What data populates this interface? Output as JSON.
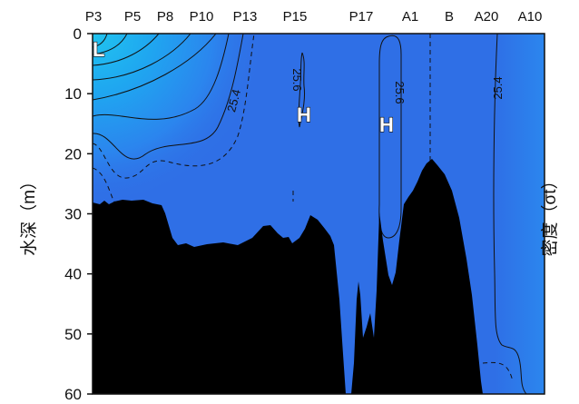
{
  "chart_data": {
    "type": "contour",
    "stations": [
      "P3",
      "P5",
      "P8",
      "P10",
      "P13",
      "P15",
      "P17",
      "A1",
      "B",
      "A20",
      "A10"
    ],
    "ylabel": "水深（m）",
    "right_label": "密度（σt）",
    "ylim": [
      0,
      60
    ],
    "y_ticks": [
      0,
      10,
      20,
      30,
      40,
      50,
      60
    ],
    "y_inverted": true,
    "contour_labels": [
      "25.4",
      "25.6",
      "25.6",
      "25.4"
    ],
    "markers": [
      "L",
      "H",
      "H"
    ],
    "colors": {
      "deep_water": "#2f6fe6",
      "mid_water": "#2a86ee",
      "surface_water": "#1fb6f2",
      "seafloor": "#000000",
      "contour_line": "#111111"
    }
  }
}
